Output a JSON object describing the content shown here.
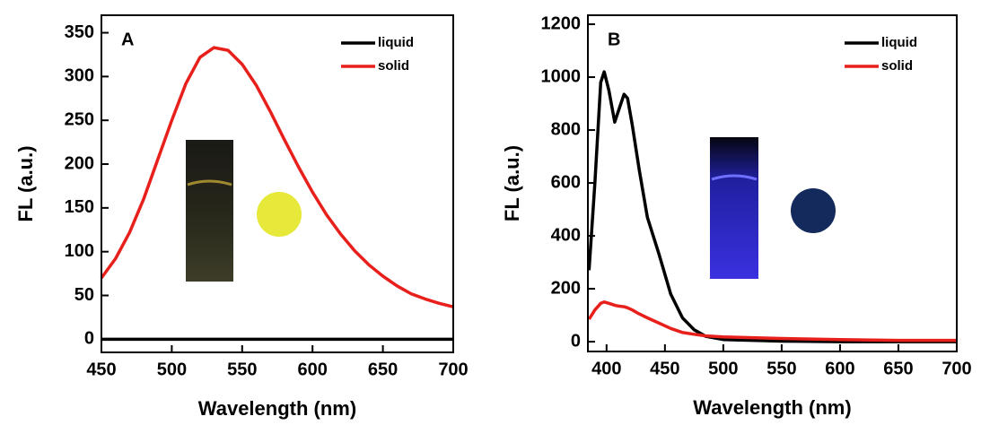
{
  "chart_data": [
    {
      "type": "line",
      "panel_label": "A",
      "x_label": "Wavelength (nm)",
      "y_label": "FL (a.u.)",
      "x": [
        450,
        460,
        470,
        480,
        490,
        500,
        510,
        520,
        530,
        540,
        550,
        560,
        570,
        580,
        590,
        600,
        610,
        620,
        630,
        640,
        650,
        660,
        670,
        680,
        690,
        700
      ],
      "series": [
        {
          "name": "liquid",
          "color": "#000000",
          "values": [
            0,
            0,
            0,
            0,
            0,
            0,
            0,
            0,
            0,
            0,
            0,
            0,
            0,
            0,
            0,
            0,
            0,
            0,
            0,
            0,
            0,
            0,
            0,
            0,
            0,
            0
          ]
        },
        {
          "name": "solid",
          "color": "#e8201c",
          "values": [
            70,
            92,
            122,
            160,
            205,
            250,
            292,
            322,
            333,
            330,
            314,
            290,
            260,
            228,
            197,
            168,
            142,
            120,
            101,
            85,
            72,
            61,
            52,
            46,
            41,
            37
          ]
        }
      ],
      "xlim": [
        450,
        700
      ],
      "xticks": [
        450,
        500,
        550,
        600,
        650,
        700
      ],
      "ylim": [
        -15,
        370
      ],
      "yticks": [
        0,
        50,
        100,
        150,
        200,
        250,
        300,
        350
      ]
    },
    {
      "type": "line",
      "panel_label": "B",
      "x_label": "Wavelength (nm)",
      "y_label": "FL (a.u.)",
      "x": [
        385,
        390,
        395,
        398,
        402,
        407,
        410,
        415,
        418,
        422,
        428,
        435,
        445,
        455,
        465,
        475,
        485,
        500,
        550,
        600,
        650,
        700
      ],
      "series": [
        {
          "name": "liquid",
          "color": "#000000",
          "values": [
            270,
            600,
            980,
            1020,
            950,
            830,
            870,
            935,
            920,
            820,
            650,
            470,
            330,
            180,
            90,
            45,
            20,
            8,
            2,
            0,
            0,
            0
          ]
        },
        {
          "name": "solid",
          "color": "#e8201c",
          "values": [
            85,
            120,
            145,
            150,
            145,
            138,
            135,
            132,
            128,
            120,
            105,
            90,
            70,
            50,
            35,
            28,
            22,
            18,
            12,
            8,
            5,
            5
          ]
        }
      ],
      "xlim": [
        384,
        700
      ],
      "xticks": [
        400,
        450,
        500,
        550,
        600,
        650,
        700
      ],
      "ylim": [
        -37,
        1234
      ],
      "yticks": [
        0,
        200,
        400,
        600,
        800,
        1000,
        1200
      ]
    }
  ]
}
